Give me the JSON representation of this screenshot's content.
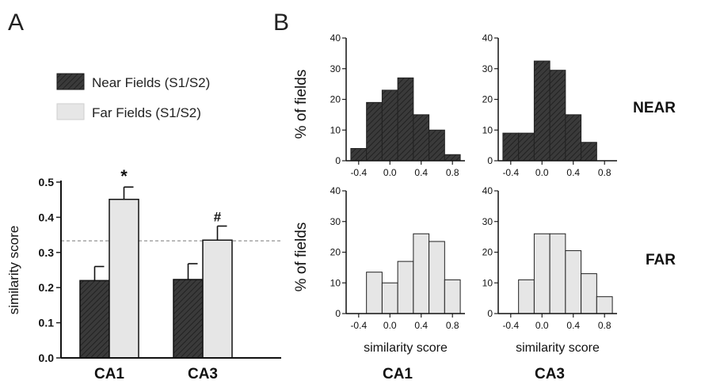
{
  "colors": {
    "near": "#3a3a3a",
    "far": "#e6e6e6",
    "stroke": "#1a1a1a",
    "dashed": "#777777"
  },
  "panel_labels": {
    "a": "A",
    "b": "B"
  },
  "legend": {
    "near": "Near Fields (S1/S2)",
    "far": "Far Fields (S1/S2)"
  },
  "row_labels": {
    "near": "NEAR",
    "far": "FAR"
  },
  "column_labels": {
    "ca1": "CA1",
    "ca3": "CA3"
  },
  "chart_data": [
    {
      "id": "A",
      "type": "bar",
      "categories": [
        "CA1",
        "CA3"
      ],
      "series": [
        {
          "name": "Near Fields (S1/S2)",
          "values": [
            0.22,
            0.223
          ],
          "errors": [
            0.04,
            0.045
          ]
        },
        {
          "name": "Far Fields (S1/S2)",
          "values": [
            0.451,
            0.335
          ],
          "errors": [
            0.035,
            0.04
          ]
        }
      ],
      "annotations": [
        "*",
        "#"
      ],
      "reference_line": 0.333,
      "xlabel": "",
      "ylabel": "similarity score",
      "ylim": [
        0,
        0.5
      ],
      "yticks": [
        "0.0",
        "0.1",
        "0.2",
        "0.3",
        "0.4",
        "0.5"
      ],
      "grid": false
    },
    {
      "id": "B-CA1-NEAR",
      "type": "bar",
      "bin_edges": [
        -0.5,
        -0.3,
        -0.1,
        0.1,
        0.3,
        0.5,
        0.7,
        0.9
      ],
      "values": [
        4,
        19,
        23,
        27,
        15,
        10,
        2
      ],
      "ylabel": "% of fields",
      "xlabel": "",
      "ylim": [
        0,
        40
      ],
      "yticks": [
        "0",
        "10",
        "20",
        "30",
        "40"
      ],
      "xticks": [
        "-0.4",
        "0.0",
        "0.4",
        "0.8"
      ]
    },
    {
      "id": "B-CA3-NEAR",
      "type": "bar",
      "bin_edges": [
        -0.5,
        -0.3,
        -0.1,
        0.1,
        0.3,
        0.5,
        0.7
      ],
      "values": [
        9,
        9,
        32.5,
        29.5,
        15,
        6
      ],
      "ylabel": "",
      "xlabel": "",
      "ylim": [
        0,
        40
      ],
      "yticks": [
        "0",
        "10",
        "20",
        "30",
        "40"
      ],
      "xticks": [
        "-0.4",
        "0.0",
        "0.4",
        "0.8"
      ]
    },
    {
      "id": "B-CA1-FAR",
      "type": "bar",
      "bin_edges": [
        -0.3,
        -0.1,
        0.1,
        0.3,
        0.5,
        0.7,
        0.9
      ],
      "values": [
        13.5,
        10,
        17,
        26,
        23.5,
        11
      ],
      "ylabel": "% of fields",
      "xlabel": "similarity score",
      "ylim": [
        0,
        40
      ],
      "yticks": [
        "0",
        "10",
        "20",
        "30",
        "40"
      ],
      "xticks": [
        "-0.4",
        "0.0",
        "0.4",
        "0.8"
      ]
    },
    {
      "id": "B-CA3-FAR",
      "type": "bar",
      "bin_edges": [
        -0.3,
        -0.1,
        0.1,
        0.3,
        0.5,
        0.7,
        0.9
      ],
      "values": [
        11,
        26,
        26,
        20.5,
        13,
        5.5
      ],
      "ylabel": "",
      "xlabel": "similarity score",
      "ylim": [
        0,
        40
      ],
      "yticks": [
        "0",
        "10",
        "20",
        "30",
        "40"
      ],
      "xticks": [
        "-0.4",
        "0.0",
        "0.4",
        "0.8"
      ]
    }
  ]
}
